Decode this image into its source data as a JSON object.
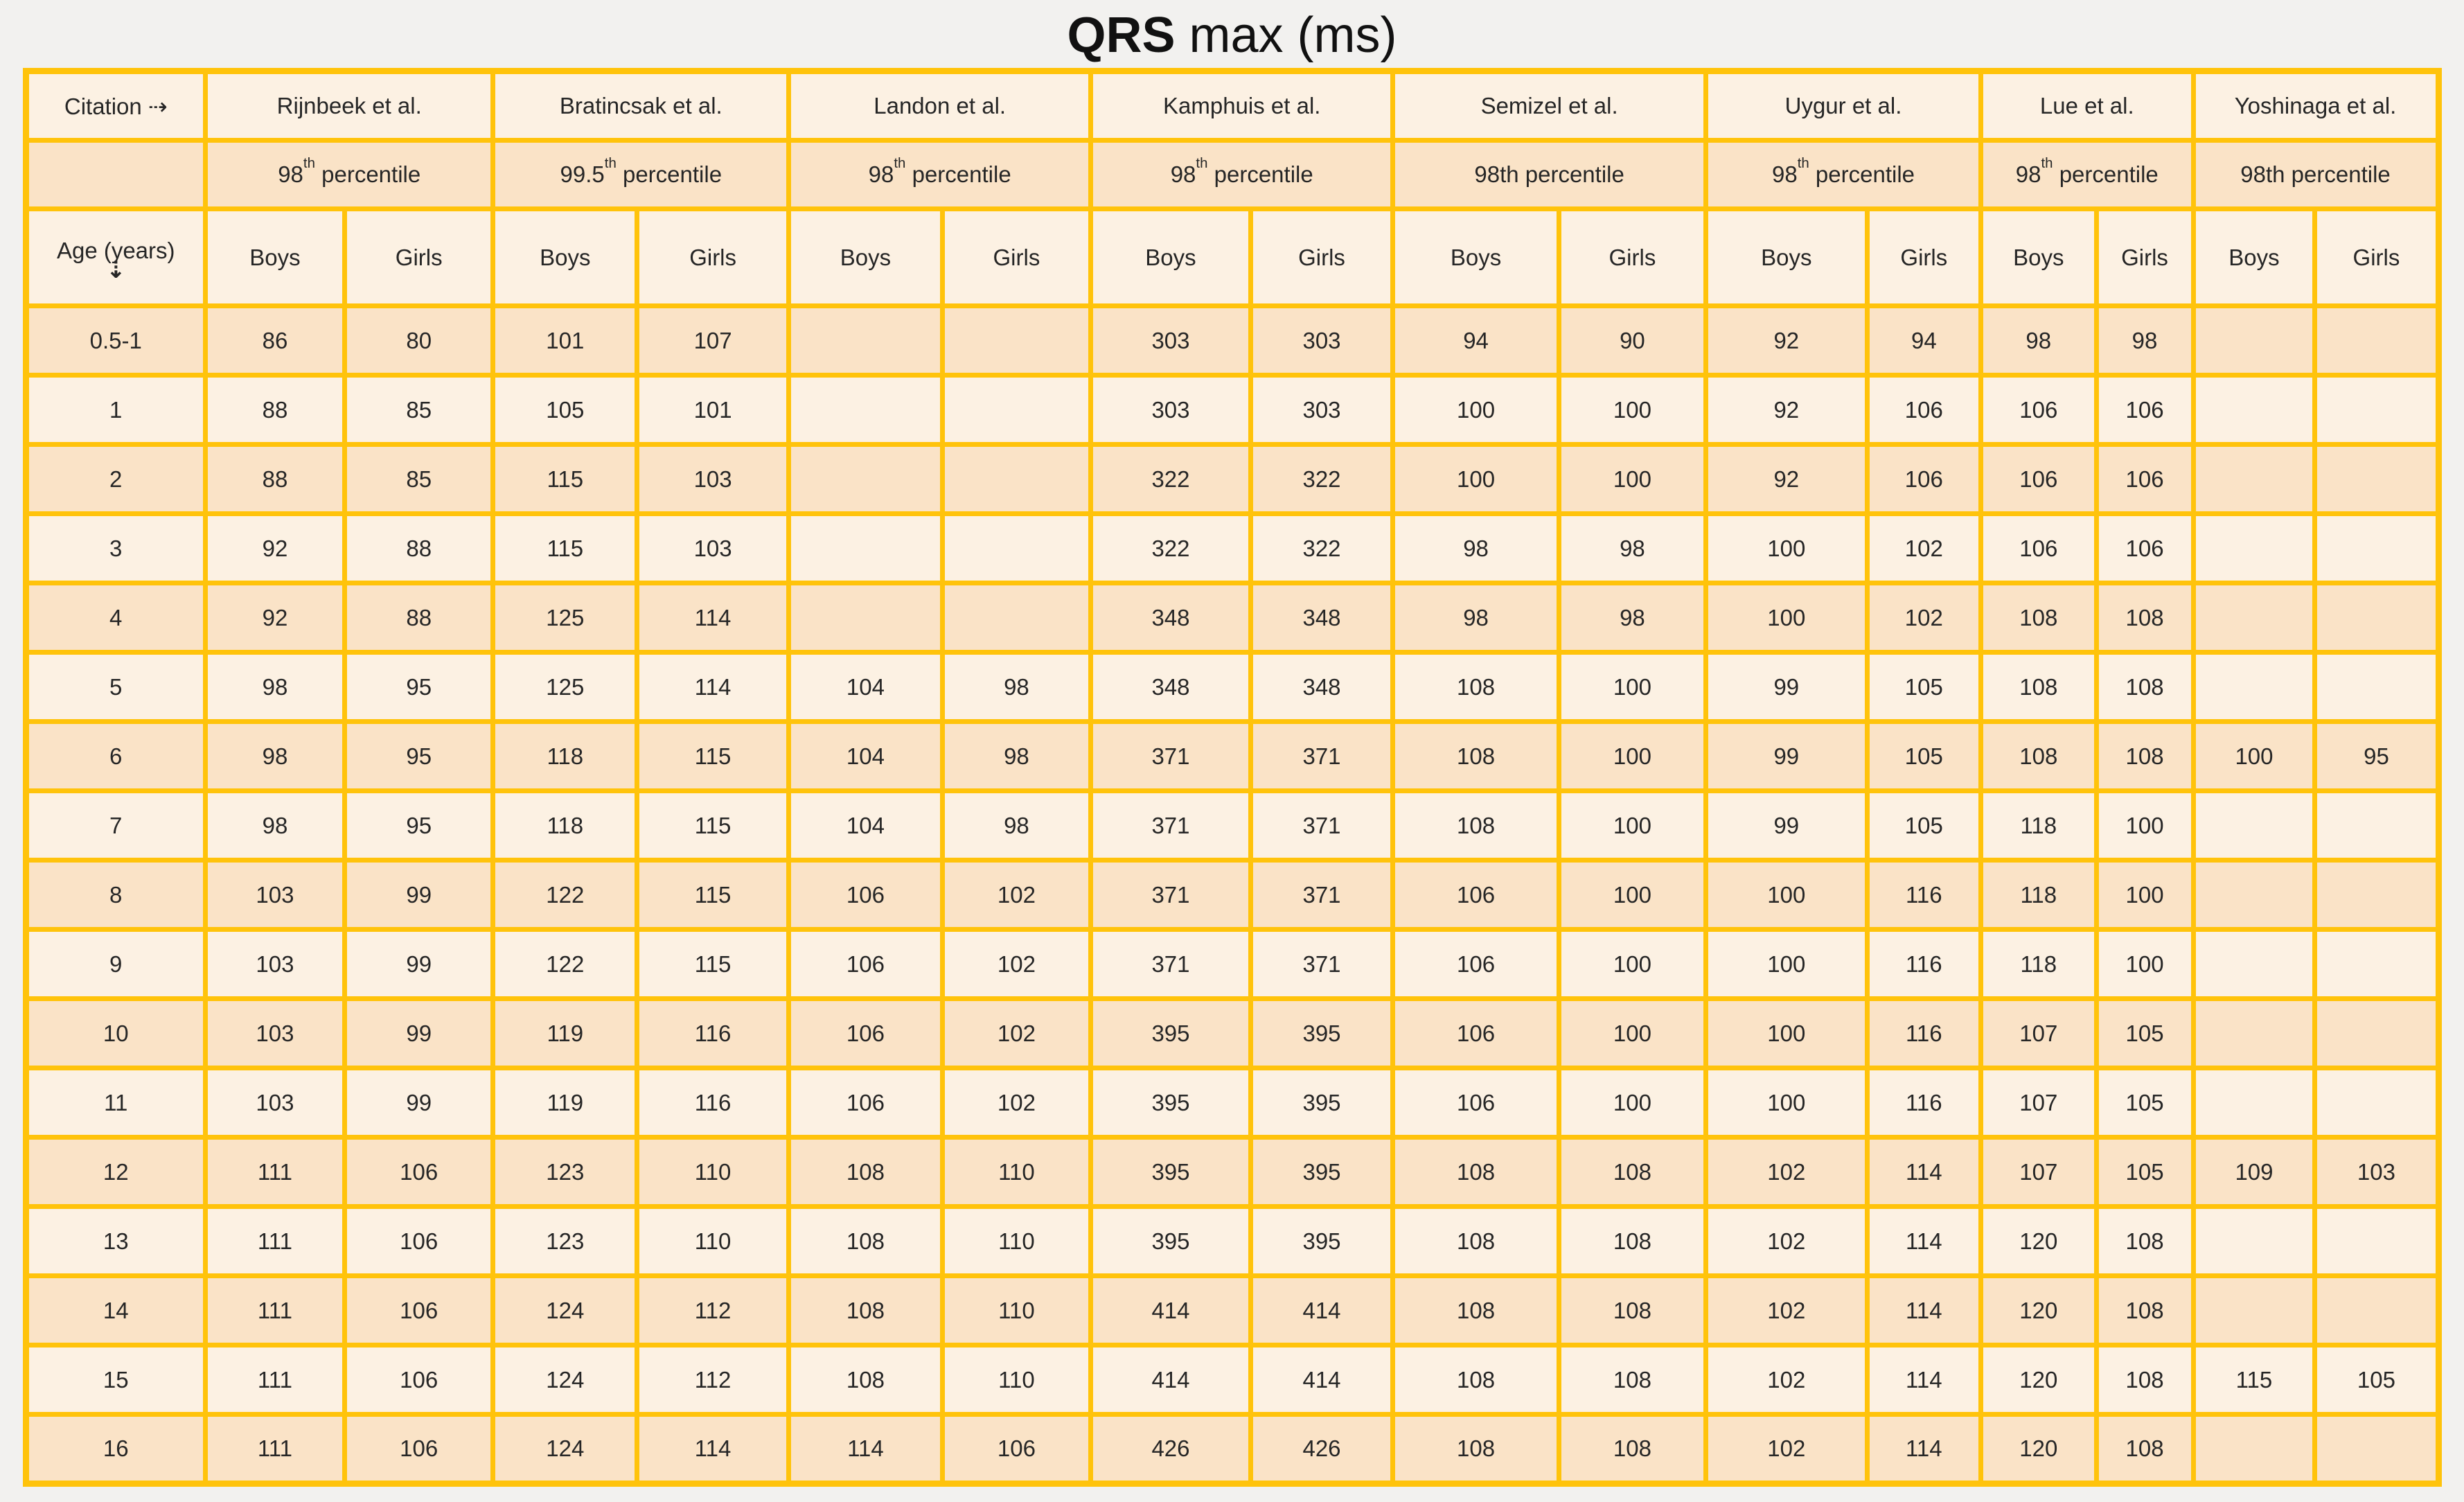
{
  "title": {
    "bold": "QRS",
    "rest": " max (ms)"
  },
  "chart_data": {
    "type": "table",
    "title": "QRS max (ms)",
    "corner_header": "Citation ⇢",
    "age_header": "Age (years)",
    "age_arrow": "⇣",
    "sex_labels": [
      "Boys",
      "Girls"
    ],
    "citations": [
      {
        "name": "Rijnbeek et al.",
        "p_base": "98",
        "p_sup": "th",
        "p_rest": " percentile"
      },
      {
        "name": "Bratincsak et al.",
        "p_base": "99.5",
        "p_sup": "th",
        "p_rest": " percentile"
      },
      {
        "name": "Landon et al.",
        "p_base": "98",
        "p_sup": "th",
        "p_rest": " percentile"
      },
      {
        "name": "Kamphuis et al.",
        "p_base": "98",
        "p_sup": "th",
        "p_rest": " percentile"
      },
      {
        "name": "Semizel et al.",
        "p_base": "98th",
        "p_sup": "",
        "p_rest": " percentile"
      },
      {
        "name": "Uygur et al.",
        "p_base": "98",
        "p_sup": "th",
        "p_rest": " percentile"
      },
      {
        "name": "Lue et al.",
        "p_base": "98",
        "p_sup": "th",
        "p_rest": " percentile"
      },
      {
        "name": "Yoshinaga et al.",
        "p_base": "98th",
        "p_sup": "",
        "p_rest": " percentile"
      }
    ],
    "rows": [
      {
        "age": "0.5-1",
        "values": [
          "86",
          "80",
          "101",
          "107",
          "",
          "",
          "303",
          "303",
          "94",
          "90",
          "92",
          "94",
          "98",
          "98",
          "",
          ""
        ]
      },
      {
        "age": "1",
        "values": [
          "88",
          "85",
          "105",
          "101",
          "",
          "",
          "303",
          "303",
          "100",
          "100",
          "92",
          "106",
          "106",
          "106",
          "",
          ""
        ]
      },
      {
        "age": "2",
        "values": [
          "88",
          "85",
          "115",
          "103",
          "",
          "",
          "322",
          "322",
          "100",
          "100",
          "92",
          "106",
          "106",
          "106",
          "",
          ""
        ]
      },
      {
        "age": "3",
        "values": [
          "92",
          "88",
          "115",
          "103",
          "",
          "",
          "322",
          "322",
          "98",
          "98",
          "100",
          "102",
          "106",
          "106",
          "",
          ""
        ]
      },
      {
        "age": "4",
        "values": [
          "92",
          "88",
          "125",
          "114",
          "",
          "",
          "348",
          "348",
          "98",
          "98",
          "100",
          "102",
          "108",
          "108",
          "",
          ""
        ]
      },
      {
        "age": "5",
        "values": [
          "98",
          "95",
          "125",
          "114",
          "104",
          "98",
          "348",
          "348",
          "108",
          "100",
          "99",
          "105",
          "108",
          "108",
          "",
          ""
        ]
      },
      {
        "age": "6",
        "values": [
          "98",
          "95",
          "118",
          "115",
          "104",
          "98",
          "371",
          "371",
          "108",
          "100",
          "99",
          "105",
          "108",
          "108",
          "100",
          "95"
        ]
      },
      {
        "age": "7",
        "values": [
          "98",
          "95",
          "118",
          "115",
          "104",
          "98",
          "371",
          "371",
          "108",
          "100",
          "99",
          "105",
          "118",
          "100",
          "",
          ""
        ]
      },
      {
        "age": "8",
        "values": [
          "103",
          "99",
          "122",
          "115",
          "106",
          "102",
          "371",
          "371",
          "106",
          "100",
          "100",
          "116",
          "118",
          "100",
          "",
          ""
        ]
      },
      {
        "age": "9",
        "values": [
          "103",
          "99",
          "122",
          "115",
          "106",
          "102",
          "371",
          "371",
          "106",
          "100",
          "100",
          "116",
          "118",
          "100",
          "",
          ""
        ]
      },
      {
        "age": "10",
        "values": [
          "103",
          "99",
          "119",
          "116",
          "106",
          "102",
          "395",
          "395",
          "106",
          "100",
          "100",
          "116",
          "107",
          "105",
          "",
          ""
        ]
      },
      {
        "age": "11",
        "values": [
          "103",
          "99",
          "119",
          "116",
          "106",
          "102",
          "395",
          "395",
          "106",
          "100",
          "100",
          "116",
          "107",
          "105",
          "",
          ""
        ]
      },
      {
        "age": "12",
        "values": [
          "111",
          "106",
          "123",
          "110",
          "108",
          "110",
          "395",
          "395",
          "108",
          "108",
          "102",
          "114",
          "107",
          "105",
          "109",
          "103"
        ]
      },
      {
        "age": "13",
        "values": [
          "111",
          "106",
          "123",
          "110",
          "108",
          "110",
          "395",
          "395",
          "108",
          "108",
          "102",
          "114",
          "120",
          "108",
          "",
          ""
        ]
      },
      {
        "age": "14",
        "values": [
          "111",
          "106",
          "124",
          "112",
          "108",
          "110",
          "414",
          "414",
          "108",
          "108",
          "102",
          "114",
          "120",
          "108",
          "",
          ""
        ]
      },
      {
        "age": "15",
        "values": [
          "111",
          "106",
          "124",
          "112",
          "108",
          "110",
          "414",
          "414",
          "108",
          "108",
          "102",
          "114",
          "120",
          "108",
          "115",
          "105"
        ]
      },
      {
        "age": "16",
        "values": [
          "111",
          "106",
          "124",
          "114",
          "114",
          "106",
          "426",
          "426",
          "108",
          "108",
          "102",
          "114",
          "120",
          "108",
          "",
          ""
        ]
      }
    ]
  },
  "colors": {
    "border": "#FFC30B",
    "band_dark": "#FAE3C7",
    "band_light": "#FCF1E3",
    "text": "#262626",
    "page_bg": "#F2F1EF"
  }
}
